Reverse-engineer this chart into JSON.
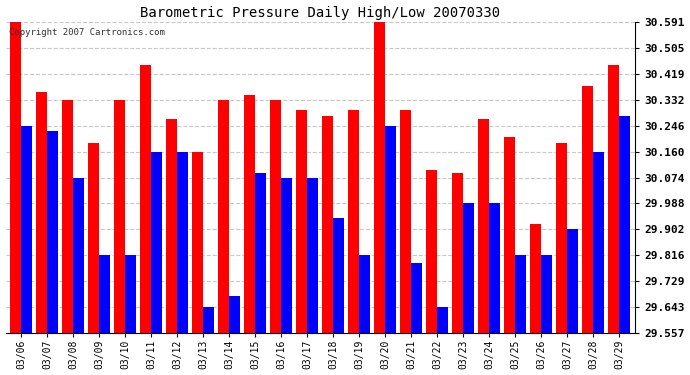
{
  "title": "Barometric Pressure Daily High/Low 20070330",
  "copyright_text": "Copyright 2007 Cartronics.com",
  "dates": [
    "03/06",
    "03/07",
    "03/08",
    "03/09",
    "03/10",
    "03/11",
    "03/12",
    "03/13",
    "03/14",
    "03/15",
    "03/16",
    "03/17",
    "03/18",
    "03/19",
    "03/20",
    "03/21",
    "03/22",
    "03/23",
    "03/24",
    "03/25",
    "03/26",
    "03/27",
    "03/28",
    "03/29"
  ],
  "highs": [
    30.591,
    30.36,
    30.332,
    30.19,
    30.332,
    30.45,
    30.27,
    30.16,
    30.332,
    30.35,
    30.332,
    30.3,
    30.28,
    30.3,
    30.6,
    30.3,
    30.1,
    30.09,
    30.27,
    30.21,
    29.92,
    30.19,
    30.38,
    30.45
  ],
  "lows": [
    30.246,
    30.23,
    30.074,
    29.816,
    29.816,
    30.16,
    30.16,
    29.643,
    29.68,
    30.09,
    30.074,
    30.074,
    29.94,
    29.816,
    30.246,
    29.79,
    29.643,
    29.988,
    29.988,
    29.816,
    29.816,
    29.902,
    30.16,
    30.28
  ],
  "high_color": "#ff0000",
  "low_color": "#0000ff",
  "bg_color": "#ffffff",
  "plot_bg_color": "#ffffff",
  "grid_color": "#c8c8c8",
  "yticks": [
    29.557,
    29.643,
    29.729,
    29.816,
    29.902,
    29.988,
    30.074,
    30.16,
    30.246,
    30.332,
    30.419,
    30.505,
    30.591
  ],
  "ymin": 29.557,
  "ymax": 30.591,
  "bar_width": 0.42
}
